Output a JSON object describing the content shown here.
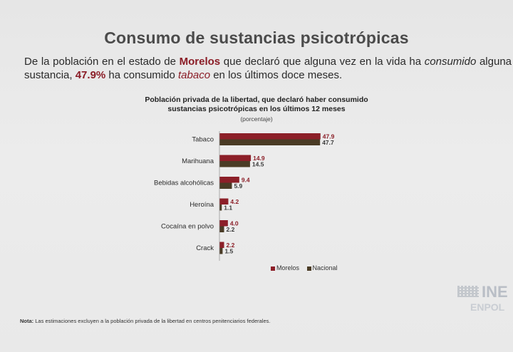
{
  "page": {
    "title": "Consumo de sustancias psicotrópicas",
    "intro": {
      "p1": "De la población en el estado de ",
      "state": "Morelos",
      "p2": " que declaró que alguna vez en la vida ha ",
      "consumed": "consumido",
      "p3": " alguna sustancia, ",
      "pct": "47.9%",
      "p4": " ha consumido ",
      "substance": "tabaco",
      "p5": " en los últimos doce meses."
    },
    "note_label": "Nota:",
    "note_text": "Las estimaciones excluyen a la población privada de la libertad en centros penitenciarios federales.",
    "logo": {
      "ine": "INE",
      "enpol": "ENPOL"
    }
  },
  "chart_data": {
    "type": "bar",
    "orientation": "horizontal",
    "title": "Población privada de la libertad, que declaró haber consumido sustancias psicotrópicas en los últimos 12 meses",
    "subtitle": "(porcentaje)",
    "categories": [
      "Tabaco",
      "Marihuana",
      "Bebidas alcohólicas",
      "Heroína",
      "Cocaína en polvo",
      "Crack"
    ],
    "series": [
      {
        "name": "Morelos",
        "values": [
          47.9,
          14.9,
          9.4,
          4.2,
          4.0,
          2.2
        ],
        "color": "#8c1f28"
      },
      {
        "name": "Nacional",
        "values": [
          47.7,
          14.5,
          5.9,
          1.1,
          2.2,
          1.5
        ],
        "color": "#4a3b25"
      }
    ],
    "xlim": [
      0,
      50
    ],
    "grid": false,
    "legend_position": "bottom-right"
  }
}
